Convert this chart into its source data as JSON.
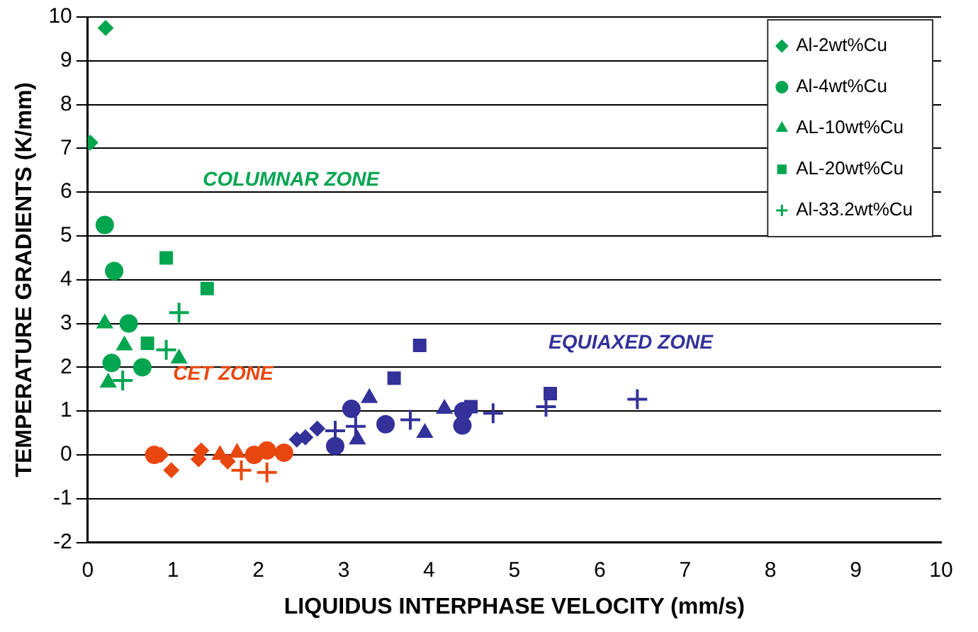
{
  "chart_data": {
    "type": "scatter",
    "xlabel": "LIQUIDUS INTERPHASE VELOCITY (mm/s)",
    "ylabel": "TEMPERATURE GRADIENTS (K/mm)",
    "xlim": [
      0,
      10
    ],
    "xticks": [
      0,
      1,
      2,
      3,
      4,
      5,
      6,
      7,
      8,
      9,
      10
    ],
    "ylim": [
      -2,
      10
    ],
    "yticks": [
      -2,
      -1,
      0,
      1,
      2,
      3,
      4,
      5,
      6,
      7,
      8,
      9,
      10
    ],
    "grid": "y",
    "legend": "top right",
    "series": [
      {
        "name": "Al-2wt%Cu",
        "marker": "diamond",
        "color": "#00a550",
        "x": [
          0.21,
          0.03
        ],
        "values": [
          9.75,
          7.13
        ]
      },
      {
        "name": "Al-4wt%Cu",
        "marker": "circle",
        "color": "#00a550",
        "x": [
          0.2,
          0.31,
          0.48,
          0.28,
          0.64
        ],
        "values": [
          5.25,
          4.2,
          3.0,
          2.1,
          2.0
        ]
      },
      {
        "name": "AL-10wt%Cu",
        "marker": "triangle",
        "color": "#00a550",
        "x": [
          0.2,
          0.43,
          1.07,
          0.24
        ],
        "values": [
          3.0,
          2.5,
          2.2,
          1.65
        ]
      },
      {
        "name": "AL-20wt%Cu",
        "marker": "square",
        "color": "#00a550",
        "x": [
          0.92,
          1.4,
          0.7
        ],
        "values": [
          4.5,
          3.8,
          2.55
        ]
      },
      {
        "name": "Al-33.2wt%Cu",
        "marker": "cross",
        "color": "#00a550",
        "x": [
          1.07,
          0.92,
          0.41
        ],
        "values": [
          3.25,
          2.4,
          1.7
        ]
      },
      {
        "marker": "diamond",
        "color": "#e8470f",
        "x": [
          0.86,
          0.98,
          1.3,
          1.33,
          1.64
        ],
        "values": [
          0,
          -0.35,
          -0.1,
          0.1,
          -0.15
        ]
      },
      {
        "marker": "circle",
        "color": "#e8470f",
        "x": [
          0.78,
          2.1,
          2.3,
          1.95
        ],
        "values": [
          0,
          0.1,
          0.05,
          0
        ]
      },
      {
        "marker": "triangle",
        "color": "#e8470f",
        "x": [
          1.75,
          1.55
        ],
        "values": [
          0.05,
          0
        ]
      },
      {
        "marker": "cross",
        "color": "#e8470f",
        "x": [
          1.8,
          2.1
        ],
        "values": [
          -0.35,
          -0.4
        ]
      },
      {
        "marker": "diamond",
        "color": "#33319a",
        "x": [
          2.45,
          2.55,
          2.69
        ],
        "values": [
          0.35,
          0.4,
          0.6
        ]
      },
      {
        "marker": "circle",
        "color": "#33319a",
        "x": [
          3.09,
          3.49,
          2.9,
          4.39,
          4.4
        ],
        "values": [
          1.05,
          0.7,
          0.2,
          0.67,
          1.0
        ]
      },
      {
        "marker": "triangle",
        "color": "#33319a",
        "x": [
          3.3,
          3.95,
          4.18,
          3.16
        ],
        "values": [
          1.3,
          0.5,
          1.05,
          0.35
        ]
      },
      {
        "marker": "square",
        "color": "#33319a",
        "x": [
          3.89,
          3.59,
          4.49,
          5.42
        ],
        "values": [
          2.5,
          1.75,
          1.1,
          1.4
        ]
      },
      {
        "marker": "cross",
        "color": "#33319a",
        "x": [
          2.9,
          3.14,
          3.78,
          4.75,
          5.37,
          6.44
        ],
        "values": [
          0.55,
          0.65,
          0.8,
          0.95,
          1.1,
          1.27
        ]
      }
    ],
    "annotations": [
      "COLUMNAR ZONE",
      "CET ZONE",
      "EQUIAXED ZONE"
    ]
  }
}
